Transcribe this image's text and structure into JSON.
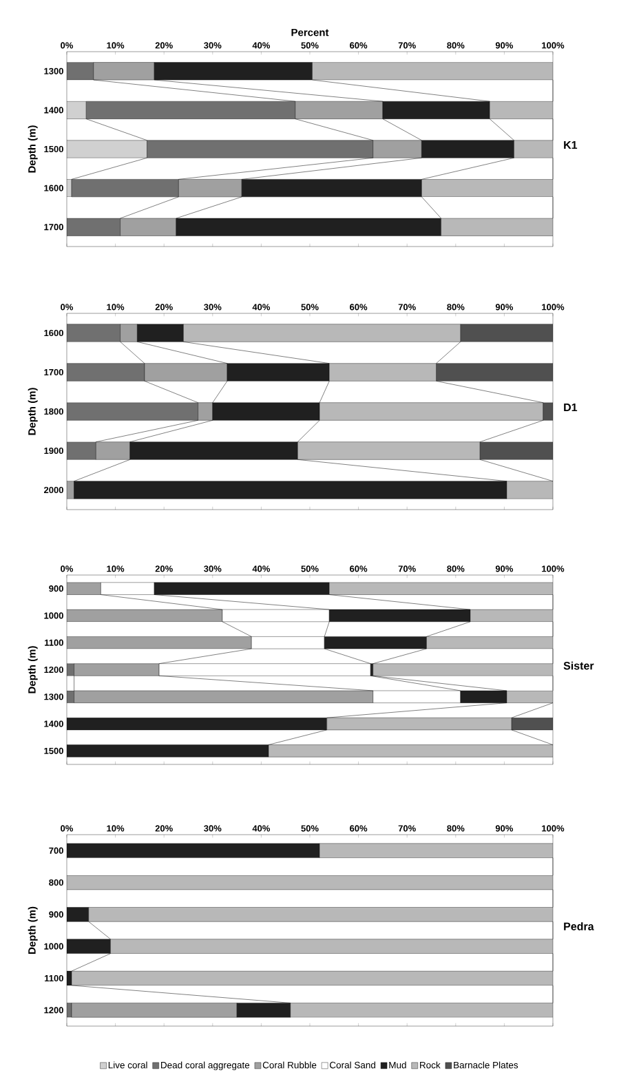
{
  "chart_data": [
    {
      "type": "bar",
      "orientation": "horizontal",
      "stacked": true,
      "title": "K1",
      "xlabel": "Percent",
      "ylabel": "Depth (m)",
      "categories": [
        "1300",
        "1400",
        "1500",
        "1600",
        "1700"
      ],
      "xlim": [
        0,
        100
      ],
      "xticks": [
        {
          "value": 0,
          "label": "0%"
        },
        {
          "value": 10,
          "label": "10%"
        },
        {
          "value": 20,
          "label": "20%"
        },
        {
          "value": 30,
          "label": "30%"
        },
        {
          "value": 40,
          "label": "40%"
        },
        {
          "value": 50,
          "label": "50%"
        },
        {
          "value": 60,
          "label": "60%"
        },
        {
          "value": 70,
          "label": "70%"
        },
        {
          "value": 80,
          "label": "80%"
        },
        {
          "value": 90,
          "label": "90%"
        },
        {
          "value": 100,
          "label": "100%"
        }
      ],
      "series": [
        {
          "color": "#d0d0d0",
          "values": [
            0,
            4,
            16.5,
            1,
            0
          ]
        },
        {
          "color": "#707070",
          "values": [
            5.5,
            43,
            46.5,
            22,
            11
          ]
        },
        {
          "color": "#a0a0a0",
          "values": [
            12.5,
            18,
            10,
            13,
            11.5
          ]
        },
        {
          "color": "#ffffff",
          "values": [
            0,
            0,
            0,
            0,
            0
          ]
        },
        {
          "color": "#202020",
          "values": [
            32.5,
            22,
            19,
            37,
            54.5
          ]
        },
        {
          "color": "#b8b8b8",
          "values": [
            49.5,
            13,
            8,
            27,
            23
          ]
        },
        {
          "color": "#505050",
          "values": [
            0,
            0,
            0,
            0,
            0
          ]
        }
      ]
    },
    {
      "type": "bar",
      "orientation": "horizontal",
      "stacked": true,
      "title": "D1",
      "ylabel": "Depth (m)",
      "categories": [
        "1600",
        "1700",
        "1800",
        "1900",
        "2000"
      ],
      "xlim": [
        0,
        100
      ],
      "xticks": [
        {
          "value": 0,
          "label": "0%"
        },
        {
          "value": 10,
          "label": "10%"
        },
        {
          "value": 20,
          "label": "20%"
        },
        {
          "value": 30,
          "label": "30%"
        },
        {
          "value": 40,
          "label": "40%"
        },
        {
          "value": 50,
          "label": "50%"
        },
        {
          "value": 60,
          "label": "60%"
        },
        {
          "value": 70,
          "label": "70%"
        },
        {
          "value": 80,
          "label": "80%"
        },
        {
          "value": 90,
          "label": "90%"
        },
        {
          "value": 100,
          "label": "100%"
        }
      ],
      "series": [
        {
          "color": "#d0d0d0",
          "values": [
            0,
            0,
            0,
            0,
            0
          ]
        },
        {
          "color": "#707070",
          "values": [
            11,
            16,
            27,
            6,
            0
          ]
        },
        {
          "color": "#a0a0a0",
          "values": [
            3.5,
            17,
            3,
            7,
            1.5
          ]
        },
        {
          "color": "#ffffff",
          "values": [
            0,
            0,
            0,
            0,
            0
          ]
        },
        {
          "color": "#202020",
          "values": [
            9.5,
            21,
            22,
            34.5,
            89
          ]
        },
        {
          "color": "#b8b8b8",
          "values": [
            57,
            22,
            46,
            37.5,
            9.5
          ]
        },
        {
          "color": "#505050",
          "values": [
            19,
            24,
            2,
            15,
            0
          ]
        }
      ]
    },
    {
      "type": "bar",
      "orientation": "horizontal",
      "stacked": true,
      "title": "Sister",
      "ylabel": "Depth (m)",
      "categories": [
        "900",
        "1000",
        "1100",
        "1200",
        "1300",
        "1400",
        "1500"
      ],
      "xlim": [
        0,
        100
      ],
      "xticks": [
        {
          "value": 0,
          "label": "0%"
        },
        {
          "value": 10,
          "label": "10%"
        },
        {
          "value": 20,
          "label": "20%"
        },
        {
          "value": 30,
          "label": "30%"
        },
        {
          "value": 40,
          "label": "40%"
        },
        {
          "value": 50,
          "label": "50%"
        },
        {
          "value": 60,
          "label": "60%"
        },
        {
          "value": 70,
          "label": "70%"
        },
        {
          "value": 80,
          "label": "80%"
        },
        {
          "value": 90,
          "label": "90%"
        },
        {
          "value": 100,
          "label": "100%"
        }
      ],
      "series": [
        {
          "color": "#d0d0d0",
          "values": [
            0,
            0,
            0,
            0,
            0,
            0,
            0
          ]
        },
        {
          "color": "#707070",
          "values": [
            0,
            0,
            0,
            1.5,
            1.5,
            0,
            0
          ]
        },
        {
          "color": "#a0a0a0",
          "values": [
            7,
            32,
            38,
            17.5,
            61.5,
            0,
            0
          ]
        },
        {
          "color": "#ffffff",
          "values": [
            11,
            22,
            15,
            43.5,
            18,
            0,
            0
          ]
        },
        {
          "color": "#202020",
          "values": [
            36,
            29,
            21,
            0.5,
            9.5,
            53.5,
            41.5
          ]
        },
        {
          "color": "#b8b8b8",
          "values": [
            46,
            17,
            26,
            37,
            9.5,
            38,
            58.5
          ]
        },
        {
          "color": "#505050",
          "values": [
            0,
            0,
            0,
            0,
            0,
            8.5,
            0
          ]
        }
      ]
    },
    {
      "type": "bar",
      "orientation": "horizontal",
      "stacked": true,
      "title": "Pedra",
      "ylabel": "Depth (m)",
      "legend": "bottom",
      "categories": [
        "700",
        "800",
        "900",
        "1000",
        "1100",
        "1200"
      ],
      "xlim": [
        0,
        100
      ],
      "xticks": [
        {
          "value": 0,
          "label": "0%"
        },
        {
          "value": 10,
          "label": "10%"
        },
        {
          "value": 20,
          "label": "20%"
        },
        {
          "value": 30,
          "label": "30%"
        },
        {
          "value": 40,
          "label": "40%"
        },
        {
          "value": 50,
          "label": "50%"
        },
        {
          "value": 60,
          "label": "60%"
        },
        {
          "value": 70,
          "label": "70%"
        },
        {
          "value": 80,
          "label": "80%"
        },
        {
          "value": 90,
          "label": "90%"
        },
        {
          "value": 100,
          "label": "100%"
        }
      ],
      "series": [
        {
          "name": "Live coral",
          "color": "#d0d0d0",
          "values": [
            0,
            0,
            0,
            0,
            0,
            0
          ]
        },
        {
          "name": "Dead coral aggregate",
          "color": "#707070",
          "values": [
            0,
            0,
            0,
            0,
            0,
            1
          ]
        },
        {
          "name": "Coral Rubble",
          "color": "#a0a0a0",
          "values": [
            0,
            0,
            0,
            0,
            0,
            34
          ]
        },
        {
          "name": "Coral Sand",
          "color": "#ffffff",
          "values": [
            0,
            0,
            0,
            0,
            0,
            0
          ]
        },
        {
          "name": "Mud",
          "color": "#202020",
          "values": [
            52,
            0,
            4.5,
            9,
            1,
            11
          ]
        },
        {
          "name": "Rock",
          "color": "#b8b8b8",
          "values": [
            48,
            100,
            95.5,
            91,
            99,
            54
          ]
        },
        {
          "name": "Barnacle Plates",
          "color": "#505050",
          "values": [
            0,
            0,
            0,
            0,
            0,
            0
          ]
        }
      ]
    }
  ]
}
